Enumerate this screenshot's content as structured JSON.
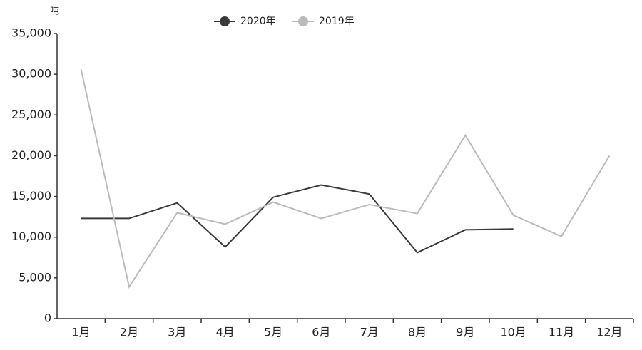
{
  "chart_data": {
    "type": "line",
    "y_axis_label": "吨",
    "categories": [
      "1月",
      "2月",
      "3月",
      "4月",
      "5月",
      "6月",
      "7月",
      "8月",
      "9月",
      "10月",
      "11月",
      "12月"
    ],
    "series": [
      {
        "name": "2020年",
        "color": "#3a3a3a",
        "values": [
          12300,
          12300,
          14200,
          8800,
          14900,
          16400,
          15300,
          8100,
          10900,
          11000,
          null,
          null
        ]
      },
      {
        "name": "2019年",
        "color": "#bbbbbb",
        "values": [
          30600,
          3900,
          13000,
          11600,
          14300,
          12300,
          14000,
          12900,
          22500,
          12700,
          10100,
          20000
        ]
      }
    ],
    "ylim": [
      0,
      35000
    ],
    "yticks": [
      0,
      {
        "value": 5000,
        "label": "5,000"
      },
      {
        "value": 10000,
        "label": "10,000"
      },
      {
        "value": 15000,
        "label": "15,000"
      },
      {
        "value": 20000,
        "label": "20,000"
      },
      {
        "value": 25000,
        "label": "25,000"
      },
      {
        "value": 30000,
        "label": "30,000"
      },
      {
        "value": 35000,
        "label": "35,000"
      }
    ],
    "grid": false
  }
}
